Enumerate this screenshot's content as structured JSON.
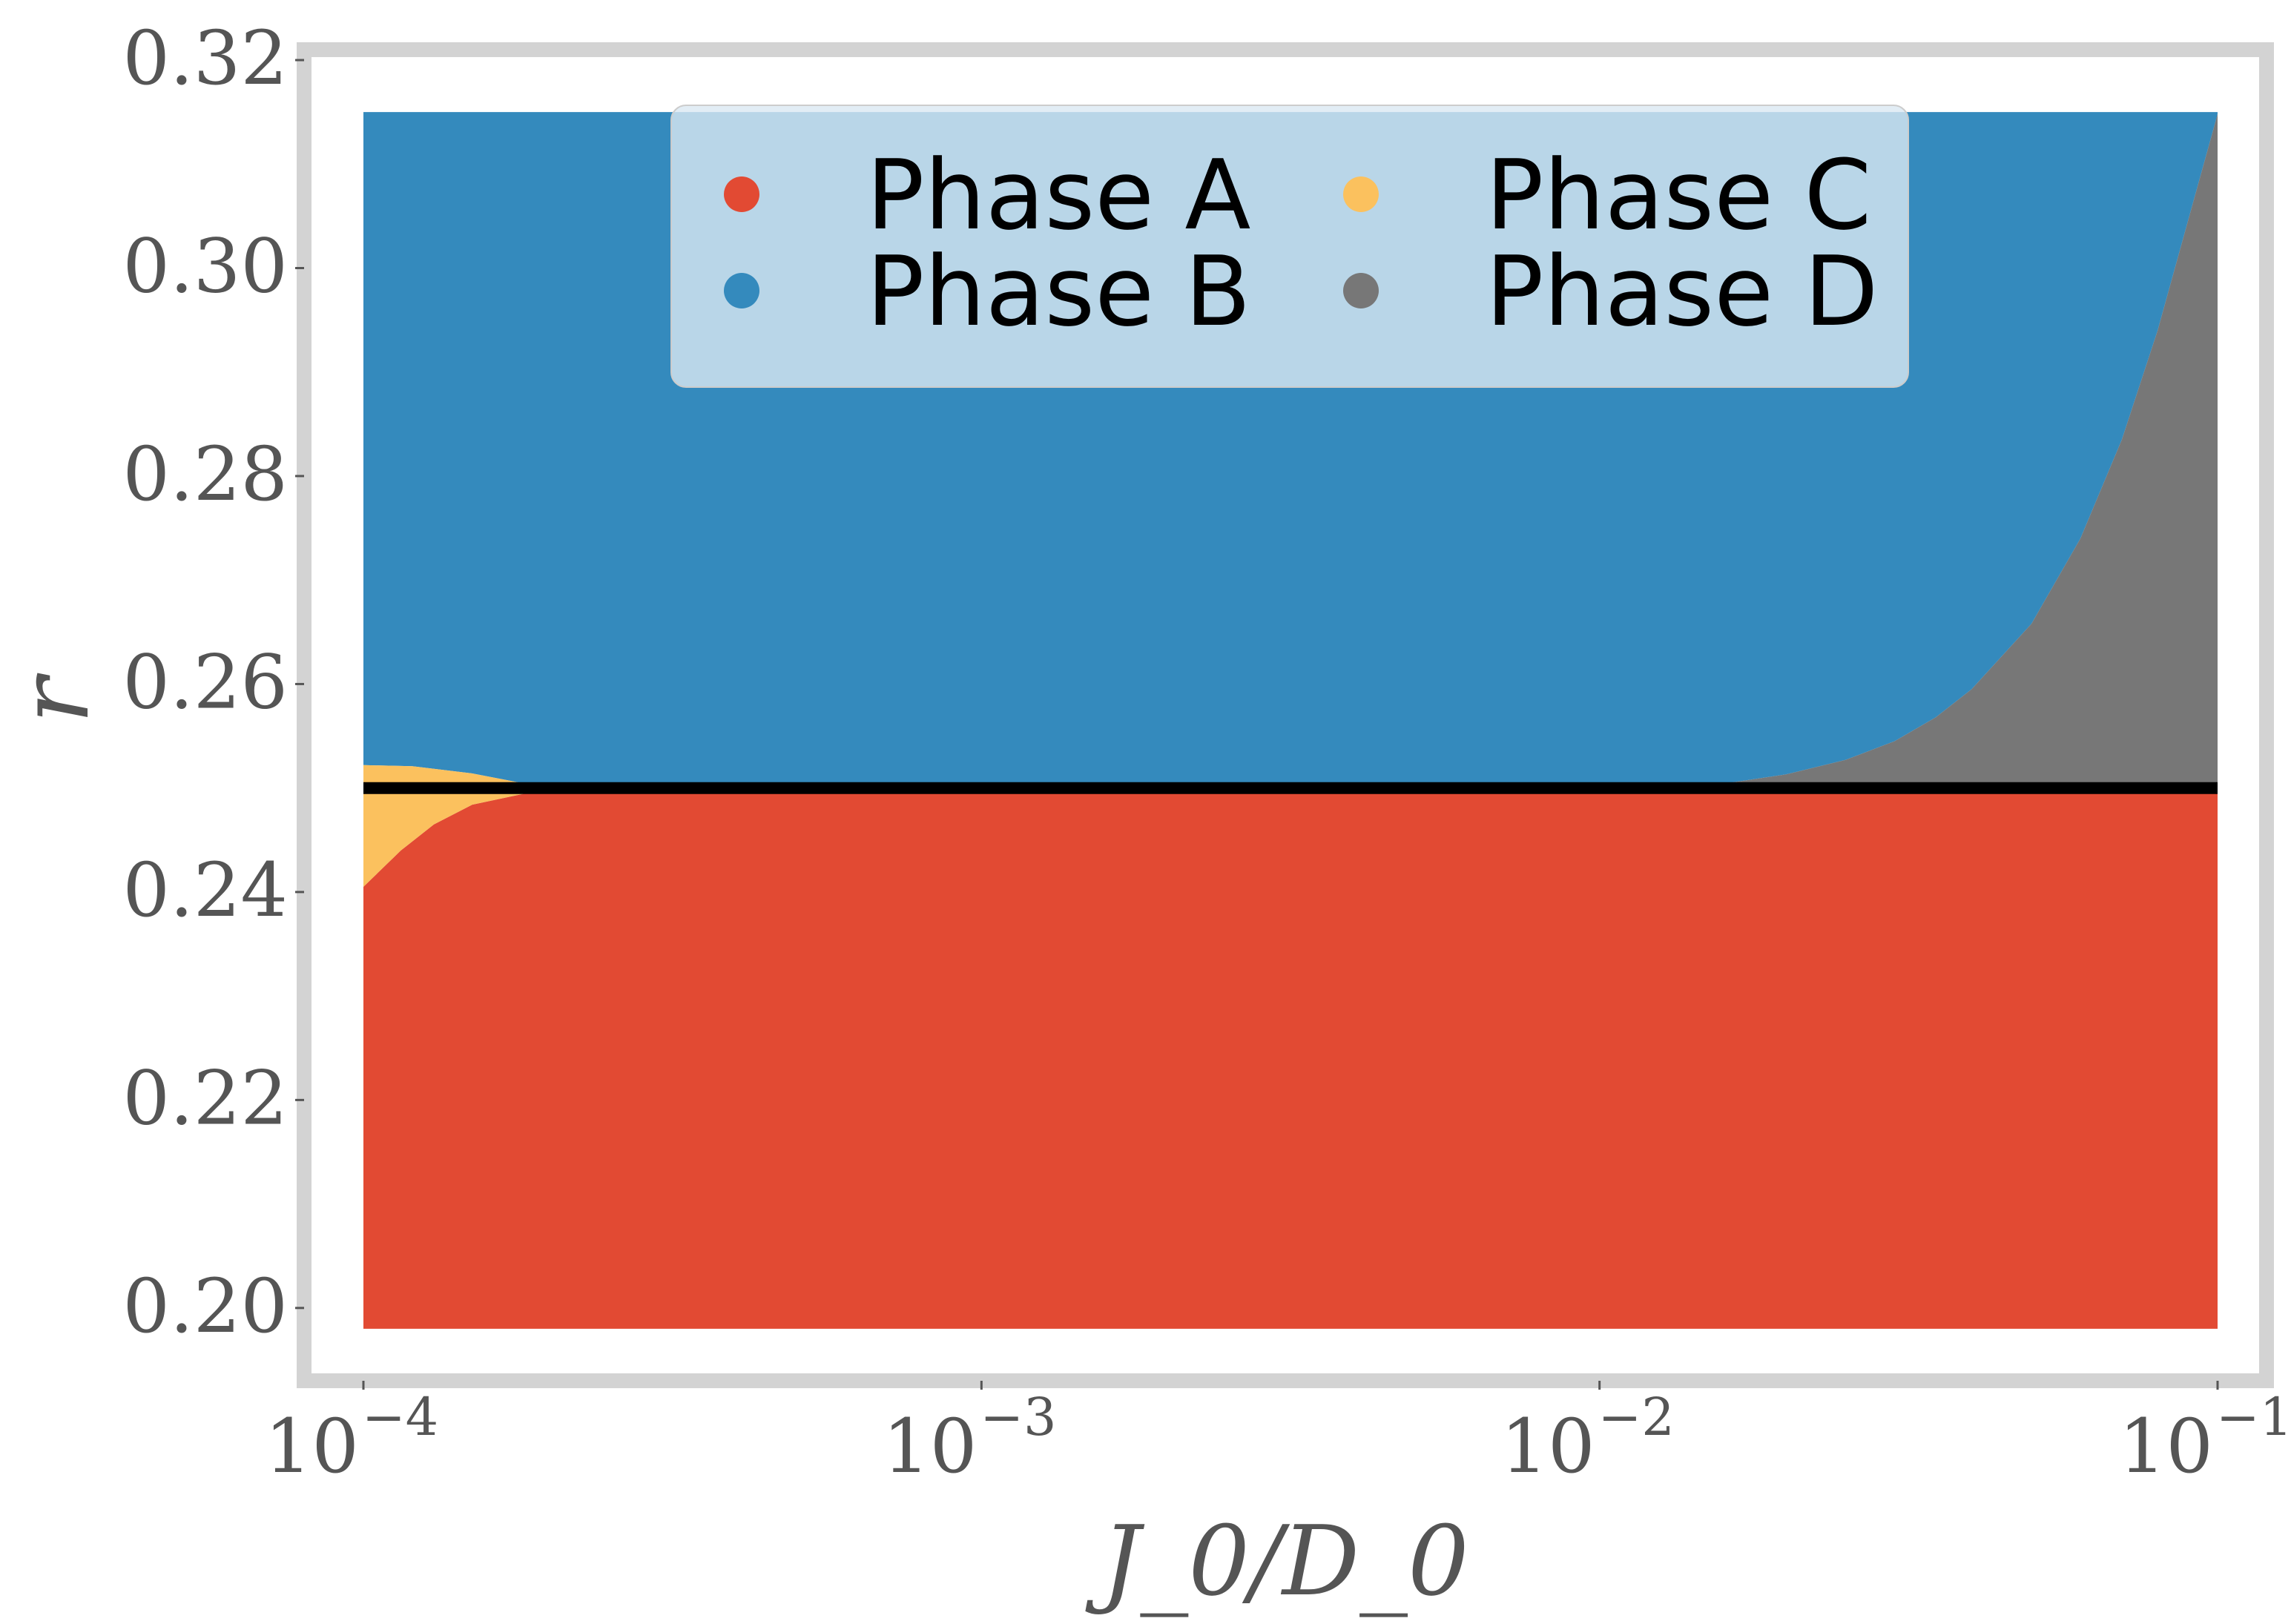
{
  "chart_data": {
    "type": "heatmap",
    "title": "",
    "xlabel": "J_0/D_0",
    "ylabel": "r",
    "x_scale": "log",
    "xlim": [
      0.0001,
      0.1
    ],
    "ylim": [
      0.198,
      0.315
    ],
    "axis_ylim": [
      0.193,
      0.321
    ],
    "grid": false,
    "x_ticks": [
      {
        "value": 0.0001,
        "base": "10",
        "exp": "−4"
      },
      {
        "value": 0.001,
        "base": "10",
        "exp": "−3"
      },
      {
        "value": 0.01,
        "base": "10",
        "exp": "−2"
      },
      {
        "value": 0.1,
        "base": "10",
        "exp": "−1"
      }
    ],
    "y_ticks": [
      {
        "value": 0.2,
        "label": "0.20"
      },
      {
        "value": 0.22,
        "label": "0.22"
      },
      {
        "value": 0.24,
        "label": "0.24"
      },
      {
        "value": 0.26,
        "label": "0.26"
      },
      {
        "value": 0.28,
        "label": "0.28"
      },
      {
        "value": 0.3,
        "label": "0.30"
      },
      {
        "value": 0.32,
        "label": "0.32"
      }
    ],
    "series": [
      {
        "name": "Phase A",
        "color": "#e24a33"
      },
      {
        "name": "Phase B",
        "color": "#348abd"
      },
      {
        "name": "Phase C",
        "color": "#fbc15e"
      },
      {
        "name": "Phase D",
        "color": "#777777"
      }
    ],
    "regions": {
      "phase_c_upper": [
        [
          0.0001,
          0.2522
        ],
        [
          0.00012,
          0.2521
        ],
        [
          0.00015,
          0.2514
        ],
        [
          0.00018,
          0.2505
        ],
        [
          0.00019,
          0.2502
        ]
      ],
      "phase_a_upper": [
        [
          0.0001,
          0.2405
        ],
        [
          0.000115,
          0.244
        ],
        [
          0.00013,
          0.2465
        ],
        [
          0.00015,
          0.2484
        ],
        [
          0.00018,
          0.2494
        ],
        [
          0.00019,
          0.2497
        ]
      ],
      "phase_d_boundary": [
        [
          0.015,
          0.2502
        ],
        [
          0.02,
          0.2513
        ],
        [
          0.025,
          0.2527
        ],
        [
          0.03,
          0.2545
        ],
        [
          0.035,
          0.2568
        ],
        [
          0.04,
          0.2595
        ],
        [
          0.05,
          0.2658
        ],
        [
          0.06,
          0.274
        ],
        [
          0.07,
          0.2835
        ],
        [
          0.08,
          0.294
        ],
        [
          0.09,
          0.305
        ],
        [
          0.1,
          0.3148
        ]
      ]
    },
    "reference_line": {
      "y": 0.25,
      "color": "#000000"
    },
    "legend": {
      "placement": "upper center",
      "ncol": 2
    }
  }
}
